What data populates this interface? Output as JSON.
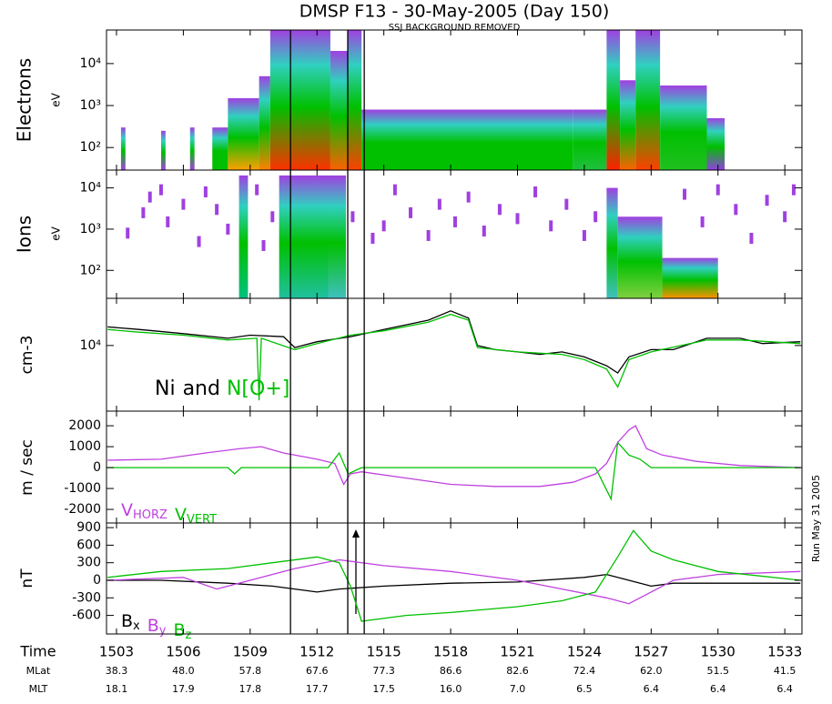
{
  "title": "DMSP F13 - 30-May-2005 (Day 150)",
  "subtitle": "SSJ BACKGROUND REMOVED",
  "run_label": "Run May 31 2005",
  "time_axis": {
    "label": "Time",
    "xlim": [
      1502.55,
      1533.77
    ],
    "xticks": [
      1503,
      1506,
      1509,
      1512,
      1515,
      1518,
      1521,
      1524,
      1527,
      1530,
      1533
    ],
    "markers": [
      1510.81,
      1513.38,
      1514.12
    ],
    "rows": [
      {
        "label": "MLat",
        "values": [
          "38.3",
          "48.0",
          "57.8",
          "67.6",
          "77.3",
          "86.6",
          "82.6",
          "72.4",
          "62.0",
          "51.5",
          "41.5"
        ]
      },
      {
        "label": "MLT",
        "values": [
          "18.1",
          "17.9",
          "17.8",
          "17.7",
          "17.5",
          "16.0",
          "7.0",
          "6.5",
          "6.4",
          "6.4",
          "6.4"
        ]
      }
    ]
  },
  "chart_data": [
    {
      "type": "spectrogram",
      "label": "Electrons",
      "unit": "eV",
      "log": true,
      "ylim": [
        29,
        63000
      ],
      "yticks": [
        {
          "value": 100,
          "label": "10²"
        },
        {
          "value": 1000,
          "label": "10³"
        },
        {
          "value": 10000,
          "label": "10⁴"
        }
      ],
      "top_color": "#a040e0",
      "palette": [
        "#00c000",
        "#30d0c0"
      ],
      "columns": [
        {
          "x": [
            1503.2,
            1503.4
          ],
          "top": 300,
          "color": "#a040e0"
        },
        {
          "x": [
            1505.0,
            1505.2
          ],
          "top": 250,
          "color": "#a040e0"
        },
        {
          "x": [
            1506.3,
            1506.5
          ],
          "top": 300,
          "color": "#a040e0"
        },
        {
          "x": [
            1507.3,
            1508.0
          ],
          "top": 300,
          "color": "#00c000"
        },
        {
          "x": [
            1508.0,
            1509.4
          ],
          "top": 1500,
          "color": "#ffa000"
        },
        {
          "x": [
            1509.4,
            1509.9
          ],
          "top": 5000,
          "color": "#ff8000"
        },
        {
          "x": [
            1509.9,
            1512.6
          ],
          "top": 63000,
          "color": "#ff3000"
        },
        {
          "x": [
            1512.6,
            1513.4
          ],
          "top": 20000,
          "color": "#ff6000"
        },
        {
          "x": [
            1513.4,
            1514.0
          ],
          "top": 63000,
          "color": "#ff4000"
        },
        {
          "x": [
            1514.0,
            1523.5
          ],
          "top": 800,
          "color": "#00c000"
        },
        {
          "x": [
            1523.5,
            1525.0
          ],
          "top": 800,
          "color": "#20c040"
        },
        {
          "x": [
            1525.0,
            1525.6
          ],
          "top": 63000,
          "color": "#ff2000"
        },
        {
          "x": [
            1525.6,
            1526.3
          ],
          "top": 4000,
          "color": "#ff6000"
        },
        {
          "x": [
            1526.3,
            1527.4
          ],
          "top": 63000,
          "color": "#ff4000"
        },
        {
          "x": [
            1527.4,
            1529.5
          ],
          "top": 3000,
          "color": "#20c020"
        },
        {
          "x": [
            1529.5,
            1530.3
          ],
          "top": 500,
          "color": "#9040e0"
        }
      ]
    },
    {
      "type": "spectrogram",
      "label": "Ions",
      "unit": "eV",
      "log": true,
      "ylim": [
        21,
        27000
      ],
      "yticks": [
        {
          "value": 100,
          "label": "10²"
        },
        {
          "value": 1000,
          "label": "10³"
        },
        {
          "value": 10000,
          "label": "10⁴"
        }
      ],
      "top_color": "#a040e0",
      "palette": [
        "#00c000",
        "#30d0c0"
      ],
      "columns": [
        {
          "x": [
            1508.5,
            1508.9
          ],
          "top": 20000,
          "color": "#00c080"
        },
        {
          "x": [
            1510.3,
            1512.5
          ],
          "top": 20000,
          "color": "#20c0a0"
        },
        {
          "x": [
            1512.5,
            1513.3
          ],
          "top": 20000,
          "color": "#40c0c0"
        },
        {
          "x": [
            1525.0,
            1525.5
          ],
          "top": 10000,
          "color": "#40c0c0"
        },
        {
          "x": [
            1525.5,
            1527.5
          ],
          "top": 2000,
          "color": "#80d040"
        },
        {
          "x": [
            1527.5,
            1530.0
          ],
          "top": 200,
          "color": "#ff9000"
        }
      ],
      "dots": {
        "color": "#a040e0",
        "x": [
          1503.5,
          1504.2,
          1504.5,
          1505,
          1505.3,
          1506,
          1506.7,
          1507,
          1507.5,
          1508,
          1509.3,
          1509.6,
          1510,
          1513.6,
          1514.5,
          1515,
          1515.5,
          1516.2,
          1517,
          1517.5,
          1518.2,
          1518.8,
          1519.5,
          1520.2,
          1521,
          1521.8,
          1522.5,
          1523.2,
          1524,
          1524.5,
          1528.5,
          1529.3,
          1530,
          1530.8,
          1531.5,
          1532.2,
          1533,
          1533.4
        ],
        "values": [
          800,
          2500,
          6000,
          9000,
          1500,
          4000,
          500,
          8000,
          3000,
          1000,
          9000,
          400,
          2000,
          2000,
          600,
          1200,
          9000,
          2500,
          700,
          4000,
          1500,
          6000,
          900,
          3000,
          1800,
          8000,
          1200,
          4000,
          700,
          2000,
          7000,
          1500,
          9000,
          3000,
          600,
          5000,
          2000,
          9000
        ]
      }
    },
    {
      "type": "line",
      "unit": "cm-3",
      "log": true,
      "ylim": [
        1900,
        33000
      ],
      "yticks": [
        {
          "value": 10000,
          "label": "10⁴"
        }
      ],
      "legend_joiner": "and",
      "series": [
        {
          "name": "Ni",
          "color": "#000000",
          "x": [
            1502.6,
            1504,
            1506,
            1508,
            1509,
            1510.5,
            1511,
            1512,
            1513.5,
            1515,
            1517,
            1518,
            1518.8,
            1519.2,
            1520,
            1521,
            1522,
            1523,
            1524,
            1525,
            1525.5,
            1526,
            1527,
            1528,
            1529.5,
            1531,
            1532,
            1533.7
          ],
          "values": [
            16000,
            15000,
            13500,
            12000,
            13000,
            12500,
            9500,
            11000,
            12500,
            15000,
            19000,
            24000,
            20000,
            10000,
            9000,
            8500,
            8000,
            8500,
            7500,
            6000,
            5000,
            7500,
            9000,
            9000,
            12000,
            12000,
            10500,
            11000
          ]
        },
        {
          "name": "N[O+]",
          "color": "#00c000",
          "x": [
            1502.6,
            1504,
            1506,
            1508,
            1509.3,
            1509.4,
            1509.5,
            1511,
            1512,
            1513.5,
            1515,
            1517,
            1518,
            1518.8,
            1519.2,
            1521,
            1523,
            1524,
            1525,
            1525.5,
            1526,
            1527,
            1529.5,
            1531,
            1533.7
          ],
          "values": [
            15000,
            14000,
            13000,
            11500,
            12000,
            2500,
            12000,
            9000,
            10500,
            13000,
            14500,
            18000,
            22000,
            19000,
            9500,
            8500,
            8000,
            7000,
            5500,
            3500,
            7000,
            8500,
            11500,
            11500,
            10500
          ]
        }
      ]
    },
    {
      "type": "line",
      "unit": "m / sec",
      "log": false,
      "ylim": [
        -2650,
        2700
      ],
      "yticks": [
        2000,
        1000,
        0,
        -1000,
        -2000
      ],
      "series": [
        {
          "name": "V",
          "subscript": "HORZ",
          "color": "#c040e0",
          "x": [
            1502.6,
            1505,
            1507,
            1508.5,
            1509.5,
            1510.5,
            1512,
            1512.8,
            1513.2,
            1513.5,
            1514,
            1516,
            1518,
            1520,
            1522,
            1523.5,
            1524.5,
            1525,
            1525.5,
            1526,
            1526.3,
            1526.8,
            1527.5,
            1529,
            1531,
            1533.7
          ],
          "values": [
            350,
            400,
            700,
            900,
            1000,
            700,
            400,
            200,
            -800,
            -300,
            -200,
            -500,
            -800,
            -900,
            -900,
            -700,
            -300,
            200,
            1200,
            1800,
            2000,
            900,
            600,
            300,
            100,
            0
          ]
        },
        {
          "name": "V",
          "subscript": "VERT",
          "color": "#00c000",
          "x": [
            1502.6,
            1508,
            1508.3,
            1508.6,
            1512.5,
            1513.0,
            1513.4,
            1514,
            1524.5,
            1525.2,
            1525.5,
            1526,
            1526.5,
            1527,
            1533.7
          ],
          "values": [
            0,
            0,
            -300,
            0,
            0,
            700,
            -300,
            0,
            0,
            -1500,
            1200,
            600,
            400,
            0,
            0
          ]
        }
      ]
    },
    {
      "type": "line",
      "unit": "nT",
      "log": false,
      "ylim": [
        -917,
        979
      ],
      "yticks": [
        900,
        600,
        300,
        0,
        -300,
        -600
      ],
      "series": [
        {
          "name": "B",
          "subscript": "x",
          "color": "#000000",
          "x": [
            1502.6,
            1505,
            1508,
            1510,
            1512,
            1513,
            1515,
            1518,
            1521,
            1524,
            1525,
            1526,
            1527,
            1528,
            1530,
            1533.7
          ],
          "values": [
            0,
            0,
            -50,
            -100,
            -200,
            -150,
            -100,
            -50,
            -30,
            50,
            100,
            0,
            -100,
            -50,
            -50,
            -50
          ]
        },
        {
          "name": "B",
          "subscript": "y",
          "color": "#c040e0",
          "x": [
            1502.6,
            1506,
            1507.5,
            1509,
            1511,
            1513,
            1515,
            1518,
            1521,
            1523,
            1525,
            1526,
            1527,
            1528,
            1530,
            1533.7
          ],
          "values": [
            0,
            50,
            -150,
            0,
            200,
            350,
            250,
            150,
            0,
            -150,
            -300,
            -400,
            -200,
            0,
            100,
            150
          ]
        },
        {
          "name": "B",
          "subscript": "z",
          "color": "#00c000",
          "x": [
            1502.6,
            1505,
            1508,
            1510,
            1512,
            1513,
            1513.5,
            1514,
            1516,
            1518,
            1521,
            1523,
            1524.5,
            1525.5,
            1526.2,
            1527,
            1528,
            1530,
            1533.7
          ],
          "values": [
            50,
            150,
            200,
            300,
            400,
            300,
            -100,
            -700,
            -600,
            -550,
            -450,
            -350,
            -200,
            400,
            850,
            500,
            350,
            150,
            0
          ]
        }
      ]
    }
  ]
}
